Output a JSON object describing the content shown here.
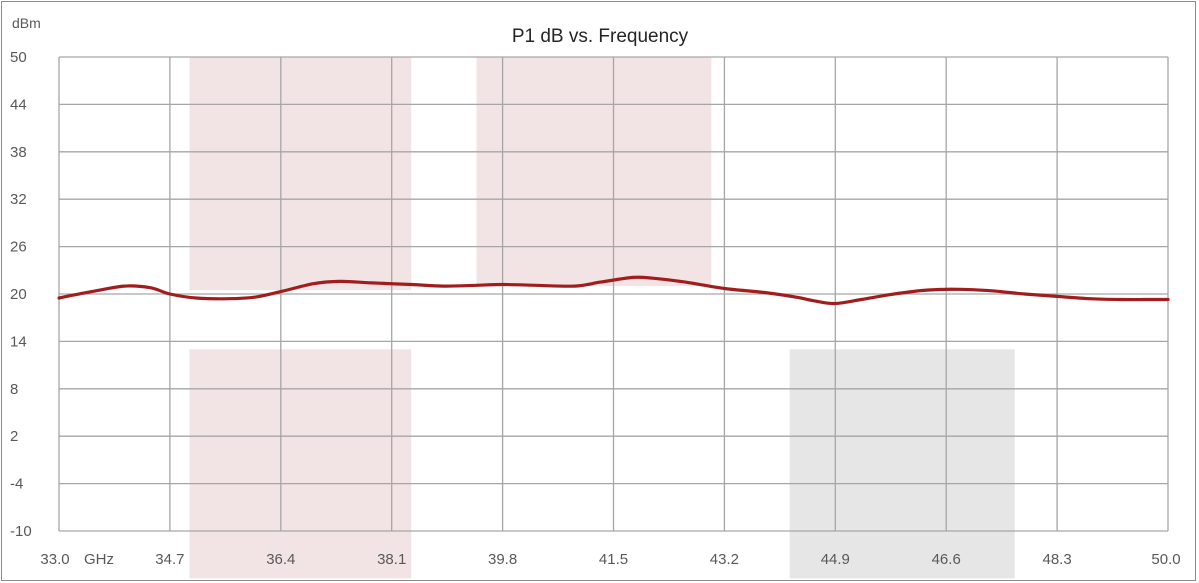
{
  "chart_data": {
    "type": "line",
    "title": "P1 dB vs. Frequency",
    "ylabel": "dBm",
    "x_unit": "GHz",
    "xlim": [
      33.0,
      50.0
    ],
    "ylim": [
      -10,
      50
    ],
    "x_ticks": [
      "33.0",
      "34.7",
      "36.4",
      "38.1",
      "39.8",
      "41.5",
      "43.2",
      "44.9",
      "46.6",
      "48.3",
      "50.0"
    ],
    "y_ticks": [
      "50",
      "44",
      "38",
      "32",
      "26",
      "20",
      "14",
      "8",
      "2",
      "-4",
      "-10"
    ],
    "grid": true,
    "bands": [
      {
        "x0": 35.0,
        "x1": 38.4,
        "y_top": 50,
        "y_bottom": 20.5,
        "color": "#f2e4e4"
      },
      {
        "x0": 39.4,
        "x1": 43.0,
        "y_top": 50,
        "y_bottom": 21.0,
        "color": "#f2e4e4"
      },
      {
        "x0": 35.0,
        "x1": 38.4,
        "y_top": 13,
        "y_bottom": -16,
        "color": "#f2e4e4"
      },
      {
        "x0": 44.2,
        "x1": 47.65,
        "y_top": 13,
        "y_bottom": -16,
        "color": "#e6e6e6"
      }
    ],
    "series": [
      {
        "color": "#a11d1d",
        "x": [
          33.0,
          33.5,
          34.0,
          34.4,
          34.7,
          35.1,
          35.6,
          36.0,
          36.4,
          36.9,
          37.3,
          37.8,
          38.4,
          38.9,
          39.4,
          39.8,
          40.3,
          40.9,
          41.3,
          41.8,
          42.1,
          42.6,
          43.2,
          43.8,
          44.3,
          44.6,
          44.9,
          45.3,
          45.8,
          46.3,
          46.8,
          47.3,
          47.8,
          48.3,
          48.8,
          49.3,
          49.7,
          50.0
        ],
        "y": [
          19.5,
          20.3,
          21.0,
          20.8,
          20.0,
          19.5,
          19.4,
          19.6,
          20.3,
          21.3,
          21.6,
          21.4,
          21.2,
          21.0,
          21.1,
          21.2,
          21.1,
          21.0,
          21.5,
          22.1,
          22.0,
          21.5,
          20.7,
          20.2,
          19.6,
          19.1,
          18.8,
          19.3,
          20.0,
          20.5,
          20.6,
          20.4,
          20.0,
          19.7,
          19.4,
          19.3,
          19.3,
          19.3
        ]
      }
    ]
  }
}
